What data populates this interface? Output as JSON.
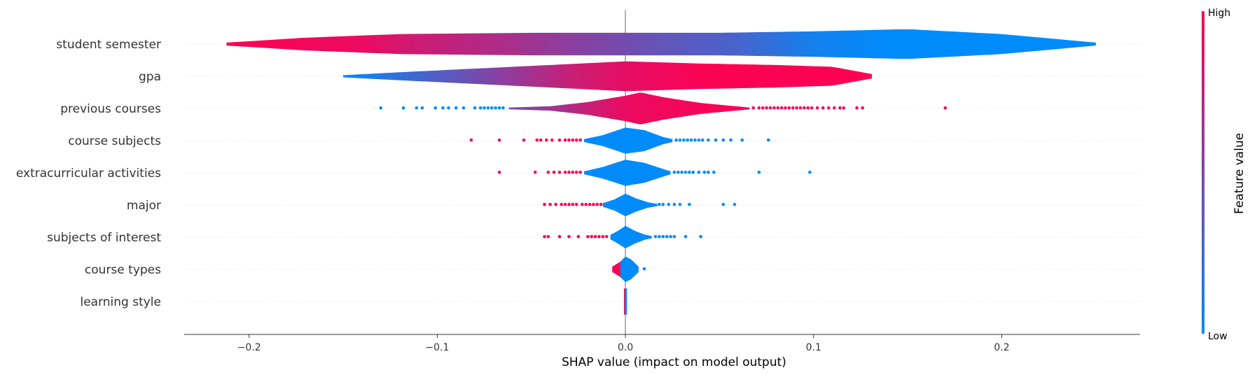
{
  "chart_data": {
    "type": "violin",
    "xlabel": "SHAP value (impact on model output)",
    "xlim": [
      -0.2345,
      0.2735
    ],
    "xticks": [
      -0.2,
      -0.1,
      0.0,
      0.1,
      0.2
    ],
    "xtick_labels": [
      "−0.2",
      "−0.1",
      "0.0",
      "0.1",
      "0.2"
    ],
    "colorbar": {
      "title": "Feature value",
      "high_label": "High",
      "low_label": "Low",
      "low_color": "#008bfb",
      "high_color": "#ff0052"
    },
    "features": [
      {
        "name": "student semester",
        "min": -0.212,
        "max": 0.25,
        "width": [
          [
            -0.212,
            0.08
          ],
          [
            -0.17,
            0.35
          ],
          [
            -0.12,
            0.55
          ],
          [
            -0.05,
            0.62
          ],
          [
            0.0,
            0.62
          ],
          [
            0.05,
            0.62
          ],
          [
            0.1,
            0.7
          ],
          [
            0.15,
            0.82
          ],
          [
            0.2,
            0.55
          ],
          [
            0.25,
            0.08
          ]
        ],
        "color": [
          [
            -0.212,
            1.0
          ],
          [
            -0.14,
            0.92
          ],
          [
            -0.11,
            0.8
          ],
          [
            -0.06,
            0.66
          ],
          [
            -0.03,
            0.55
          ],
          [
            0.0,
            0.45
          ],
          [
            0.03,
            0.36
          ],
          [
            0.06,
            0.28
          ],
          [
            0.08,
            0.18
          ],
          [
            0.1,
            0.08
          ],
          [
            0.14,
            0.0
          ],
          [
            0.25,
            0.0
          ]
        ],
        "outliers": []
      },
      {
        "name": "gpa",
        "min": -0.15,
        "max": 0.131,
        "width": [
          [
            -0.15,
            0.06
          ],
          [
            -0.12,
            0.22
          ],
          [
            -0.08,
            0.42
          ],
          [
            -0.04,
            0.62
          ],
          [
            0.0,
            0.82
          ],
          [
            0.04,
            0.7
          ],
          [
            0.08,
            0.62
          ],
          [
            0.11,
            0.52
          ],
          [
            0.131,
            0.12
          ]
        ],
        "color": [
          [
            -0.15,
            0.0
          ],
          [
            -0.12,
            0.2
          ],
          [
            -0.09,
            0.38
          ],
          [
            -0.06,
            0.58
          ],
          [
            -0.03,
            0.78
          ],
          [
            0.0,
            0.9
          ],
          [
            0.04,
            0.98
          ],
          [
            0.131,
            1.0
          ]
        ],
        "outliers": []
      },
      {
        "name": "previous courses",
        "min": -0.062,
        "max": 0.066,
        "width": [
          [
            -0.062,
            0.05
          ],
          [
            -0.04,
            0.12
          ],
          [
            -0.02,
            0.35
          ],
          [
            0.0,
            0.7
          ],
          [
            0.008,
            0.88
          ],
          [
            0.02,
            0.62
          ],
          [
            0.04,
            0.3
          ],
          [
            0.066,
            0.05
          ]
        ],
        "color": [
          [
            -0.062,
            0.45
          ],
          [
            -0.04,
            0.6
          ],
          [
            -0.02,
            0.78
          ],
          [
            0.0,
            0.92
          ],
          [
            0.066,
            1.0
          ]
        ],
        "outliers": [
          {
            "x": -0.13,
            "c": 0
          },
          {
            "x": -0.118,
            "c": 0
          },
          {
            "x": -0.111,
            "c": 0
          },
          {
            "x": -0.108,
            "c": 0
          },
          {
            "x": -0.101,
            "c": 0
          },
          {
            "x": -0.097,
            "c": 0
          },
          {
            "x": -0.094,
            "c": 0
          },
          {
            "x": -0.09,
            "c": 0
          },
          {
            "x": -0.086,
            "c": 0
          },
          {
            "x": -0.08,
            "c": 0
          },
          {
            "x": -0.077,
            "c": 0
          },
          {
            "x": -0.075,
            "c": 0
          },
          {
            "x": -0.073,
            "c": 0
          },
          {
            "x": -0.071,
            "c": 0
          },
          {
            "x": -0.069,
            "c": 0
          },
          {
            "x": -0.067,
            "c": 0
          },
          {
            "x": -0.065,
            "c": 0
          },
          {
            "x": 0.068,
            "c": 1
          },
          {
            "x": 0.071,
            "c": 1
          },
          {
            "x": 0.073,
            "c": 1
          },
          {
            "x": 0.075,
            "c": 1
          },
          {
            "x": 0.077,
            "c": 1
          },
          {
            "x": 0.079,
            "c": 1
          },
          {
            "x": 0.081,
            "c": 1
          },
          {
            "x": 0.083,
            "c": 1
          },
          {
            "x": 0.085,
            "c": 1
          },
          {
            "x": 0.087,
            "c": 1
          },
          {
            "x": 0.089,
            "c": 1
          },
          {
            "x": 0.091,
            "c": 1
          },
          {
            "x": 0.093,
            "c": 1
          },
          {
            "x": 0.095,
            "c": 1
          },
          {
            "x": 0.097,
            "c": 1
          },
          {
            "x": 0.099,
            "c": 1
          },
          {
            "x": 0.102,
            "c": 1
          },
          {
            "x": 0.105,
            "c": 1
          },
          {
            "x": 0.108,
            "c": 1
          },
          {
            "x": 0.111,
            "c": 1
          },
          {
            "x": 0.114,
            "c": 1
          },
          {
            "x": 0.116,
            "c": 1
          },
          {
            "x": 0.123,
            "c": 1
          },
          {
            "x": 0.126,
            "c": 1
          },
          {
            "x": 0.17,
            "c": 1
          }
        ]
      },
      {
        "name": "course subjects",
        "min": -0.022,
        "max": 0.025,
        "width": [
          [
            -0.022,
            0.08
          ],
          [
            -0.012,
            0.3
          ],
          [
            0.0,
            0.72
          ],
          [
            0.01,
            0.58
          ],
          [
            0.02,
            0.2
          ],
          [
            0.025,
            0.08
          ]
        ],
        "color": [
          [
            -0.022,
            0.0
          ],
          [
            0.025,
            0.0
          ]
        ],
        "outliers": [
          {
            "x": -0.082,
            "c": 1
          },
          {
            "x": -0.067,
            "c": 1
          },
          {
            "x": -0.054,
            "c": 1
          },
          {
            "x": -0.047,
            "c": 1
          },
          {
            "x": -0.045,
            "c": 1
          },
          {
            "x": -0.042,
            "c": 1
          },
          {
            "x": -0.039,
            "c": 1
          },
          {
            "x": -0.035,
            "c": 1
          },
          {
            "x": -0.032,
            "c": 1
          },
          {
            "x": -0.03,
            "c": 1
          },
          {
            "x": -0.028,
            "c": 1
          },
          {
            "x": -0.026,
            "c": 1
          },
          {
            "x": -0.024,
            "c": 1
          },
          {
            "x": 0.027,
            "c": 0
          },
          {
            "x": 0.029,
            "c": 0
          },
          {
            "x": 0.031,
            "c": 0
          },
          {
            "x": 0.033,
            "c": 0
          },
          {
            "x": 0.035,
            "c": 0
          },
          {
            "x": 0.037,
            "c": 0
          },
          {
            "x": 0.039,
            "c": 0
          },
          {
            "x": 0.041,
            "c": 0
          },
          {
            "x": 0.044,
            "c": 0
          },
          {
            "x": 0.048,
            "c": 0
          },
          {
            "x": 0.052,
            "c": 0
          },
          {
            "x": 0.056,
            "c": 0
          },
          {
            "x": 0.062,
            "c": 0
          },
          {
            "x": 0.076,
            "c": 0
          }
        ]
      },
      {
        "name": "extracurricular activities",
        "min": -0.022,
        "max": 0.024,
        "width": [
          [
            -0.022,
            0.08
          ],
          [
            -0.012,
            0.32
          ],
          [
            0.0,
            0.72
          ],
          [
            0.01,
            0.55
          ],
          [
            0.018,
            0.28
          ],
          [
            0.024,
            0.08
          ]
        ],
        "color": [
          [
            -0.022,
            0.0
          ],
          [
            0.024,
            0.0
          ]
        ],
        "outliers": [
          {
            "x": -0.067,
            "c": 1
          },
          {
            "x": -0.048,
            "c": 1
          },
          {
            "x": -0.041,
            "c": 1
          },
          {
            "x": -0.038,
            "c": 1
          },
          {
            "x": -0.035,
            "c": 1
          },
          {
            "x": -0.032,
            "c": 1
          },
          {
            "x": -0.03,
            "c": 1
          },
          {
            "x": -0.028,
            "c": 1
          },
          {
            "x": -0.026,
            "c": 1
          },
          {
            "x": -0.024,
            "c": 1
          },
          {
            "x": 0.026,
            "c": 0
          },
          {
            "x": 0.028,
            "c": 0
          },
          {
            "x": 0.03,
            "c": 0
          },
          {
            "x": 0.032,
            "c": 0
          },
          {
            "x": 0.034,
            "c": 0
          },
          {
            "x": 0.036,
            "c": 0
          },
          {
            "x": 0.039,
            "c": 0
          },
          {
            "x": 0.042,
            "c": 0
          },
          {
            "x": 0.044,
            "c": 0
          },
          {
            "x": 0.047,
            "c": 0
          },
          {
            "x": 0.071,
            "c": 0
          },
          {
            "x": 0.098,
            "c": 0
          }
        ]
      },
      {
        "name": "major",
        "min": -0.012,
        "max": 0.017,
        "width": [
          [
            -0.012,
            0.1
          ],
          [
            -0.006,
            0.3
          ],
          [
            0.0,
            0.62
          ],
          [
            0.006,
            0.35
          ],
          [
            0.012,
            0.15
          ],
          [
            0.017,
            0.06
          ]
        ],
        "color": [
          [
            -0.012,
            0.0
          ],
          [
            0.017,
            0.0
          ]
        ],
        "outliers": [
          {
            "x": -0.043,
            "c": 1
          },
          {
            "x": -0.04,
            "c": 1
          },
          {
            "x": -0.037,
            "c": 1
          },
          {
            "x": -0.034,
            "c": 1
          },
          {
            "x": -0.032,
            "c": 1
          },
          {
            "x": -0.03,
            "c": 1
          },
          {
            "x": -0.028,
            "c": 1
          },
          {
            "x": -0.026,
            "c": 1
          },
          {
            "x": -0.023,
            "c": 1
          },
          {
            "x": -0.021,
            "c": 1
          },
          {
            "x": -0.019,
            "c": 1
          },
          {
            "x": -0.017,
            "c": 1
          },
          {
            "x": -0.015,
            "c": 1
          },
          {
            "x": -0.013,
            "c": 1
          },
          {
            "x": 0.018,
            "c": 0
          },
          {
            "x": 0.02,
            "c": 0
          },
          {
            "x": 0.023,
            "c": 0
          },
          {
            "x": 0.026,
            "c": 0
          },
          {
            "x": 0.029,
            "c": 0
          },
          {
            "x": 0.034,
            "c": 0
          },
          {
            "x": 0.052,
            "c": 0
          },
          {
            "x": 0.058,
            "c": 0
          }
        ]
      },
      {
        "name": "subjects of interest",
        "min": -0.008,
        "max": 0.014,
        "width": [
          [
            -0.008,
            0.12
          ],
          [
            -0.004,
            0.35
          ],
          [
            0.0,
            0.62
          ],
          [
            0.005,
            0.35
          ],
          [
            0.01,
            0.15
          ],
          [
            0.014,
            0.06
          ]
        ],
        "color": [
          [
            -0.008,
            0.0
          ],
          [
            0.014,
            0.0
          ]
        ],
        "outliers": [
          {
            "x": -0.043,
            "c": 1
          },
          {
            "x": -0.041,
            "c": 1
          },
          {
            "x": -0.035,
            "c": 1
          },
          {
            "x": -0.03,
            "c": 1
          },
          {
            "x": -0.025,
            "c": 1
          },
          {
            "x": -0.02,
            "c": 1
          },
          {
            "x": -0.018,
            "c": 1
          },
          {
            "x": -0.016,
            "c": 1
          },
          {
            "x": -0.014,
            "c": 1
          },
          {
            "x": -0.012,
            "c": 1
          },
          {
            "x": -0.01,
            "c": 1
          },
          {
            "x": 0.016,
            "c": 0
          },
          {
            "x": 0.018,
            "c": 0
          },
          {
            "x": 0.02,
            "c": 0
          },
          {
            "x": 0.022,
            "c": 0
          },
          {
            "x": 0.024,
            "c": 0
          },
          {
            "x": 0.026,
            "c": 0
          },
          {
            "x": 0.032,
            "c": 0
          },
          {
            "x": 0.04,
            "c": 0
          }
        ]
      },
      {
        "name": "course types",
        "min": -0.007,
        "max": 0.007,
        "width": [
          [
            -0.007,
            0.15
          ],
          [
            -0.003,
            0.4
          ],
          [
            0.0,
            0.7
          ],
          [
            0.003,
            0.55
          ],
          [
            0.007,
            0.15
          ]
        ],
        "color": [
          [
            -0.007,
            1.0
          ],
          [
            -0.0035,
            0.95
          ],
          [
            -0.002,
            0.0
          ],
          [
            0.007,
            0.0
          ]
        ],
        "outliers": [
          {
            "x": 0.01,
            "c": 0
          }
        ]
      },
      {
        "name": "learning style",
        "min": -0.0008,
        "max": 0.0008,
        "width": [
          [
            -0.0008,
            0.72
          ],
          [
            0.0,
            0.72
          ],
          [
            0.0008,
            0.72
          ]
        ],
        "color": [
          [
            -0.0008,
            1.0
          ],
          [
            -0.0002,
            0.6
          ],
          [
            0.0,
            0.0
          ],
          [
            0.0008,
            0.0
          ]
        ],
        "outliers": []
      }
    ]
  }
}
